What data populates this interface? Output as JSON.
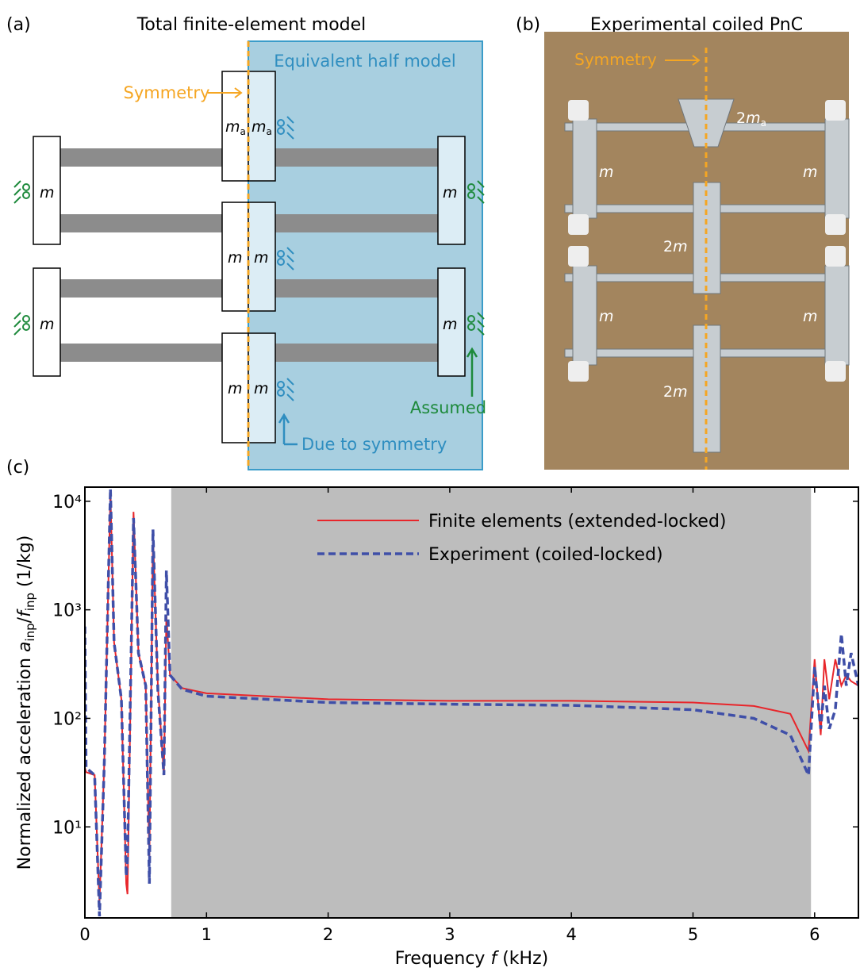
{
  "panel_a": {
    "tag": "(a)",
    "title": "Total finite-element model",
    "half_model": "Equivalent half model",
    "symmetry": "Symmetry",
    "mass": "m",
    "mass_a": "m",
    "sub_a": "a",
    "assumed": "Assumed",
    "due_to_symmetry": "Due to symmetry"
  },
  "panel_b": {
    "tag": "(b)",
    "title": "Experimental coiled PnC",
    "symmetry": "Symmetry",
    "two": "2",
    "mass": "m",
    "sub_a": "a"
  },
  "chart_data": {
    "type": "line",
    "tag": "(c)",
    "x_label": [
      "Frequency ",
      "f",
      " (kHz)"
    ],
    "y_label": [
      "Normalized acceleration ",
      "a",
      "inp",
      "/",
      "f",
      "inp",
      " (1/kg)"
    ],
    "x": [
      0.0,
      0.01,
      0.08,
      0.12,
      0.16,
      0.21,
      0.24,
      0.3,
      0.34,
      0.35,
      0.4,
      0.44,
      0.5,
      0.53,
      0.56,
      0.6,
      0.65,
      0.67,
      0.7,
      0.8,
      1.0,
      2.0,
      3.0,
      4.0,
      5.0,
      5.5,
      5.8,
      5.95,
      6.0,
      6.05,
      6.08,
      6.12,
      6.17,
      6.22,
      6.26,
      6.3,
      6.36
    ],
    "series": [
      {
        "name": "Finite elements (extended-locked)",
        "color": "#e8262b",
        "dash": false,
        "values": [
          35,
          32,
          30,
          2,
          40,
          12000,
          500,
          150,
          3,
          2.4,
          8000,
          400,
          200,
          5,
          5000,
          200,
          30,
          900,
          250,
          190,
          170,
          150,
          145,
          145,
          140,
          130,
          110,
          50,
          350,
          70,
          350,
          150,
          350,
          200,
          250,
          220,
          200
        ]
      },
      {
        "name": "Experiment (coiled-locked)",
        "color": "#3f4fa8",
        "dash": true,
        "values": [
          700,
          35,
          30,
          1.5,
          40,
          13000,
          500,
          150,
          3.5,
          5,
          7000,
          400,
          200,
          3,
          5500,
          180,
          30,
          2300,
          250,
          185,
          160,
          140,
          135,
          132,
          120,
          100,
          70,
          30,
          300,
          80,
          200,
          80,
          120,
          600,
          200,
          400,
          200
        ]
      }
    ],
    "xlim": [
      0,
      6.36
    ],
    "xticks": [
      0,
      1,
      2,
      3,
      4,
      5,
      6
    ],
    "ylim": [
      1.45,
      13500
    ],
    "log_y": true,
    "yticks": [
      {
        "value": 10,
        "label": "10¹"
      },
      {
        "value": 100,
        "label": "10²"
      },
      {
        "value": 1000,
        "label": "10³"
      },
      {
        "value": 10000,
        "label": "10⁴"
      }
    ],
    "shaded_region": [
      0.71,
      5.97
    ],
    "shade_color": "#bdbdbd",
    "legend": "upper right",
    "grid": false
  }
}
